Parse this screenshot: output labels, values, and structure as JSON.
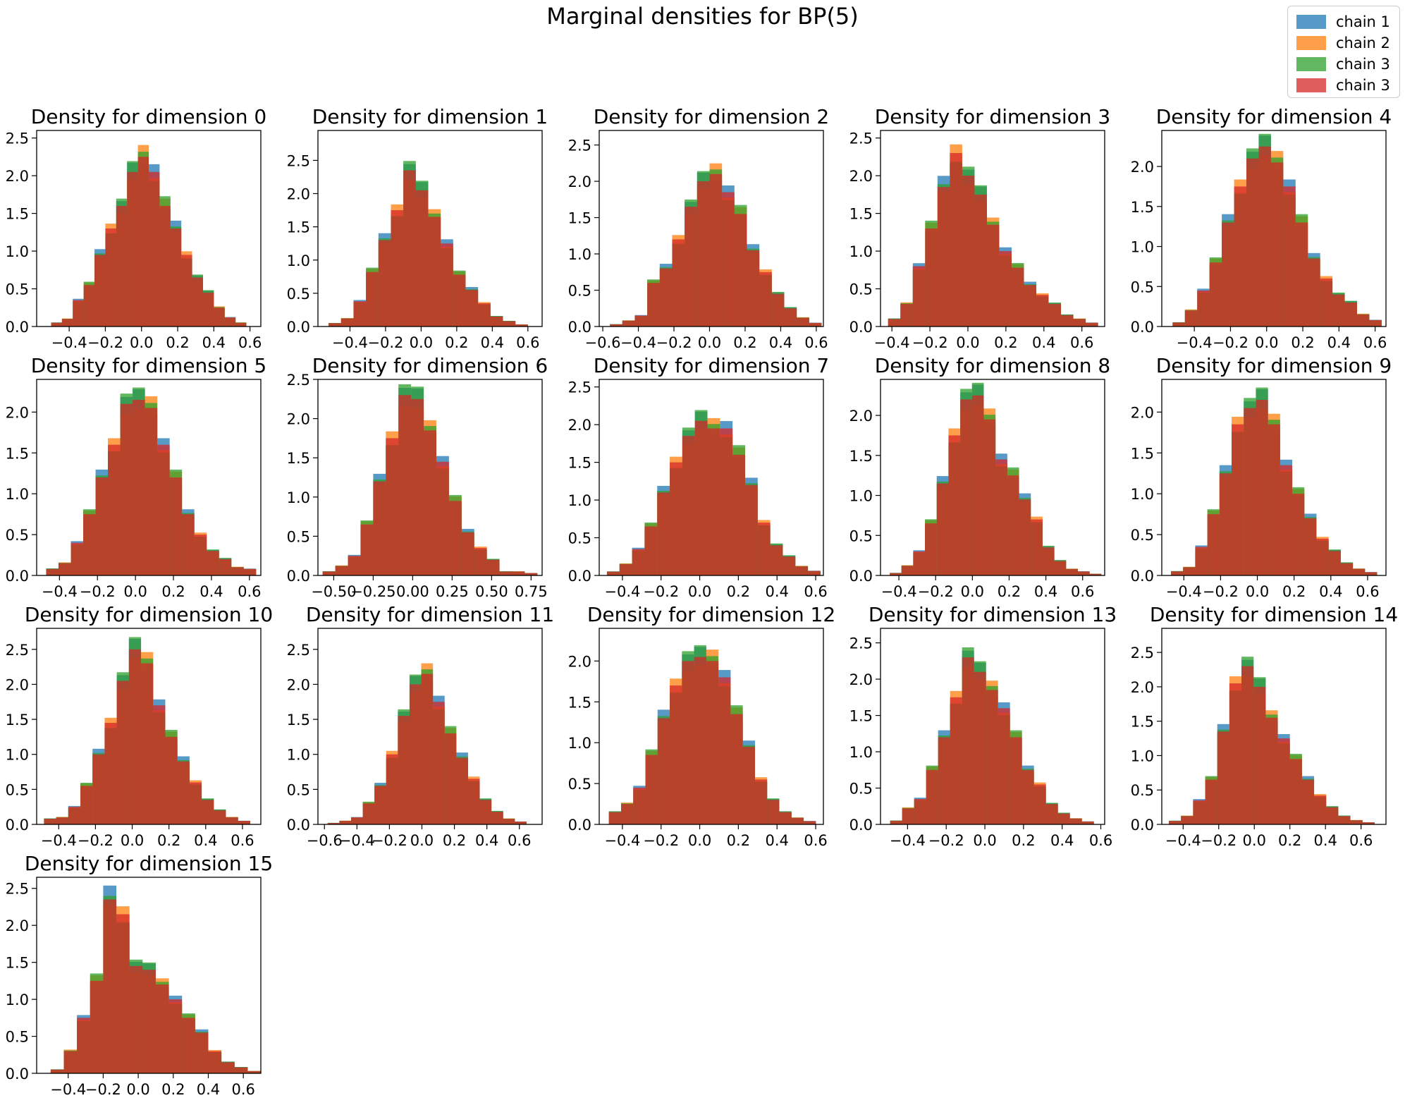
{
  "figure": {
    "title": "Marginal densities for BP(5)"
  },
  "legend": [
    {
      "label": "chain 1",
      "color": "#1f77b4"
    },
    {
      "label": "chain 2",
      "color": "#ff7f0e"
    },
    {
      "label": "chain 3",
      "color": "#2ca02c"
    },
    {
      "label": "chain 3",
      "color": "#d62728"
    }
  ],
  "chart_data": [
    {
      "type": "bar",
      "title": "Density for dimension 0",
      "xlim": [
        -0.58,
        0.66
      ],
      "ylim": [
        0,
        2.6
      ],
      "xticks": [
        {
          "v": -0.4,
          "label": "−0.4"
        },
        {
          "v": -0.2,
          "label": "−0.2"
        },
        {
          "v": 0.0,
          "label": "0.0"
        },
        {
          "v": 0.2,
          "label": "0.2"
        },
        {
          "v": 0.4,
          "label": "0.4"
        },
        {
          "v": 0.6,
          "label": "0.6"
        }
      ],
      "yticks": [
        0.0,
        0.5,
        1.0,
        1.5,
        2.0,
        2.5
      ],
      "density": [
        0.05,
        0.1,
        0.35,
        0.55,
        0.95,
        1.3,
        1.6,
        2.05,
        2.25,
        2.05,
        1.6,
        1.3,
        0.95,
        0.65,
        0.45,
        0.25,
        0.12,
        0.05
      ],
      "bin_start": -0.5,
      "bin_width": 0.06
    },
    {
      "type": "bar",
      "title": "Density for dimension 1",
      "xlim": [
        -0.58,
        0.68
      ],
      "ylim": [
        0,
        2.95
      ],
      "xticks": [
        {
          "v": -0.4,
          "label": "−0.4"
        },
        {
          "v": -0.2,
          "label": "−0.2"
        },
        {
          "v": 0.0,
          "label": "0.0"
        },
        {
          "v": 0.2,
          "label": "0.2"
        },
        {
          "v": 0.4,
          "label": "0.4"
        },
        {
          "v": 0.6,
          "label": "0.6"
        }
      ],
      "yticks": [
        0.0,
        0.5,
        1.0,
        1.5,
        2.0,
        2.5
      ],
      "density": [
        0.05,
        0.12,
        0.38,
        0.82,
        1.3,
        1.75,
        2.35,
        2.05,
        1.65,
        1.25,
        0.78,
        0.55,
        0.35,
        0.15,
        0.08,
        0.03
      ],
      "bin_start": -0.52,
      "bin_width": 0.07
    },
    {
      "type": "bar",
      "title": "Density for dimension 2",
      "xlim": [
        -0.62,
        0.64
      ],
      "ylim": [
        0,
        2.7
      ],
      "xticks": [
        {
          "v": -0.6,
          "label": "−0.6"
        },
        {
          "v": -0.4,
          "label": "−0.4"
        },
        {
          "v": -0.2,
          "label": "−0.2"
        },
        {
          "v": 0.0,
          "label": "0.0"
        },
        {
          "v": 0.2,
          "label": "0.2"
        },
        {
          "v": 0.4,
          "label": "0.4"
        },
        {
          "v": 0.6,
          "label": "0.6"
        }
      ],
      "yticks": [
        0.0,
        0.5,
        1.0,
        1.5,
        2.0,
        2.5
      ],
      "density": [
        0.03,
        0.08,
        0.15,
        0.6,
        0.8,
        1.2,
        1.65,
        2.0,
        2.1,
        1.85,
        1.55,
        1.05,
        0.75,
        0.45,
        0.25,
        0.12,
        0.05
      ],
      "bin_start": -0.56,
      "bin_width": 0.07
    },
    {
      "type": "bar",
      "title": "Density for dimension 3",
      "xlim": [
        -0.46,
        0.72
      ],
      "ylim": [
        0,
        2.6
      ],
      "xticks": [
        {
          "v": -0.4,
          "label": "−0.4"
        },
        {
          "v": -0.2,
          "label": "−0.2"
        },
        {
          "v": 0.0,
          "label": "0.0"
        },
        {
          "v": 0.2,
          "label": "0.2"
        },
        {
          "v": 0.4,
          "label": "0.4"
        },
        {
          "v": 0.6,
          "label": "0.6"
        }
      ],
      "yticks": [
        0.0,
        0.5,
        1.0,
        1.5,
        2.0,
        2.5
      ],
      "density": [
        0.1,
        0.3,
        0.8,
        1.3,
        1.85,
        2.3,
        2.0,
        1.75,
        1.35,
        1.0,
        0.78,
        0.55,
        0.42,
        0.3,
        0.15,
        0.1,
        0.05
      ],
      "bin_start": -0.42,
      "bin_width": 0.065
    },
    {
      "type": "bar",
      "title": "Density for dimension 4",
      "xlim": [
        -0.58,
        0.66
      ],
      "ylim": [
        0,
        2.45
      ],
      "xticks": [
        {
          "v": -0.4,
          "label": "−0.4"
        },
        {
          "v": -0.2,
          "label": "−0.2"
        },
        {
          "v": 0.0,
          "label": "0.0"
        },
        {
          "v": 0.2,
          "label": "0.2"
        },
        {
          "v": 0.4,
          "label": "0.4"
        },
        {
          "v": 0.6,
          "label": "0.6"
        }
      ],
      "yticks": [
        0.0,
        0.5,
        1.0,
        1.5,
        2.0
      ],
      "density": [
        0.05,
        0.2,
        0.45,
        0.8,
        1.3,
        1.75,
        2.1,
        2.25,
        2.05,
        1.75,
        1.3,
        0.85,
        0.6,
        0.4,
        0.3,
        0.15,
        0.08
      ],
      "bin_start": -0.52,
      "bin_width": 0.068
    },
    {
      "type": "bar",
      "title": "Density for dimension 5",
      "xlim": [
        -0.52,
        0.66
      ],
      "ylim": [
        0,
        2.4
      ],
      "xticks": [
        {
          "v": -0.4,
          "label": "−0.4"
        },
        {
          "v": -0.2,
          "label": "−0.2"
        },
        {
          "v": 0.0,
          "label": "0.0"
        },
        {
          "v": 0.2,
          "label": "0.2"
        },
        {
          "v": 0.4,
          "label": "0.4"
        },
        {
          "v": 0.6,
          "label": "0.6"
        }
      ],
      "yticks": [
        0.0,
        0.5,
        1.0,
        1.5,
        2.0
      ],
      "density": [
        0.08,
        0.15,
        0.4,
        0.75,
        1.2,
        1.6,
        2.1,
        2.15,
        2.05,
        1.6,
        1.2,
        0.75,
        0.5,
        0.3,
        0.2,
        0.1,
        0.08
      ],
      "bin_start": -0.47,
      "bin_width": 0.065
    },
    {
      "type": "bar",
      "title": "Density for dimension 6",
      "xlim": [
        -0.6,
        0.82
      ],
      "ylim": [
        0,
        2.5
      ],
      "xticks": [
        {
          "v": -0.5,
          "label": "−0.50"
        },
        {
          "v": -0.25,
          "label": "−0.25"
        },
        {
          "v": 0.0,
          "label": "0.00"
        },
        {
          "v": 0.25,
          "label": "0.25"
        },
        {
          "v": 0.5,
          "label": "0.50"
        },
        {
          "v": 0.75,
          "label": "0.75"
        }
      ],
      "yticks": [
        0.0,
        0.5,
        1.0,
        1.5,
        2.0,
        2.5
      ],
      "density": [
        0.05,
        0.12,
        0.25,
        0.65,
        1.2,
        1.75,
        2.3,
        2.25,
        1.85,
        1.45,
        0.95,
        0.55,
        0.35,
        0.2,
        0.05,
        0.05,
        0.03
      ],
      "bin_start": -0.57,
      "bin_width": 0.08
    },
    {
      "type": "bar",
      "title": "Density for dimension 7",
      "xlim": [
        -0.52,
        0.64
      ],
      "ylim": [
        0,
        2.6
      ],
      "xticks": [
        {
          "v": -0.4,
          "label": "−0.4"
        },
        {
          "v": -0.2,
          "label": "−0.2"
        },
        {
          "v": 0.0,
          "label": "0.0"
        },
        {
          "v": 0.2,
          "label": "0.2"
        },
        {
          "v": 0.4,
          "label": "0.4"
        },
        {
          "v": 0.6,
          "label": "0.6"
        }
      ],
      "yticks": [
        0.0,
        0.5,
        1.0,
        1.5,
        2.0,
        2.5
      ],
      "density": [
        0.05,
        0.15,
        0.35,
        0.65,
        1.1,
        1.5,
        1.85,
        2.05,
        1.95,
        1.95,
        1.6,
        1.2,
        0.7,
        0.4,
        0.25,
        0.12,
        0.06
      ],
      "bin_start": -0.48,
      "bin_width": 0.065
    },
    {
      "type": "bar",
      "title": "Density for dimension 8",
      "xlim": [
        -0.5,
        0.72
      ],
      "ylim": [
        0,
        2.45
      ],
      "xticks": [
        {
          "v": -0.4,
          "label": "−0.4"
        },
        {
          "v": -0.2,
          "label": "−0.2"
        },
        {
          "v": 0.0,
          "label": "0.0"
        },
        {
          "v": 0.2,
          "label": "0.2"
        },
        {
          "v": 0.4,
          "label": "0.4"
        },
        {
          "v": 0.6,
          "label": "0.6"
        }
      ],
      "yticks": [
        0.0,
        0.5,
        1.0,
        1.5,
        2.0
      ],
      "density": [
        0.03,
        0.12,
        0.3,
        0.65,
        1.15,
        1.75,
        2.2,
        2.25,
        1.95,
        1.45,
        1.25,
        0.95,
        0.7,
        0.35,
        0.18,
        0.08,
        0.05,
        0.02
      ],
      "bin_start": -0.45,
      "bin_width": 0.064
    },
    {
      "type": "bar",
      "title": "Density for dimension 9",
      "xlim": [
        -0.52,
        0.7
      ],
      "ylim": [
        0,
        2.4
      ],
      "xticks": [
        {
          "v": -0.4,
          "label": "−0.4"
        },
        {
          "v": -0.2,
          "label": "−0.2"
        },
        {
          "v": 0.0,
          "label": "0.0"
        },
        {
          "v": 0.2,
          "label": "0.2"
        },
        {
          "v": 0.4,
          "label": "0.4"
        },
        {
          "v": 0.6,
          "label": "0.6"
        }
      ],
      "yticks": [
        0.0,
        0.5,
        1.0,
        1.5,
        2.0
      ],
      "density": [
        0.05,
        0.1,
        0.35,
        0.75,
        1.25,
        1.85,
        2.05,
        2.15,
        1.85,
        1.35,
        1.0,
        0.7,
        0.45,
        0.3,
        0.15,
        0.08,
        0.04
      ],
      "bin_start": -0.47,
      "bin_width": 0.066
    },
    {
      "type": "bar",
      "title": "Density for dimension 10",
      "xlim": [
        -0.52,
        0.7
      ],
      "ylim": [
        0,
        2.8
      ],
      "xticks": [
        {
          "v": -0.4,
          "label": "−0.4"
        },
        {
          "v": -0.2,
          "label": "−0.2"
        },
        {
          "v": 0.0,
          "label": "0.0"
        },
        {
          "v": 0.2,
          "label": "0.2"
        },
        {
          "v": 0.4,
          "label": "0.4"
        },
        {
          "v": 0.6,
          "label": "0.6"
        }
      ],
      "yticks": [
        0.0,
        0.5,
        1.0,
        1.5,
        2.0,
        2.5
      ],
      "density": [
        0.08,
        0.1,
        0.25,
        0.55,
        1.0,
        1.45,
        2.05,
        2.5,
        2.3,
        1.7,
        1.25,
        0.9,
        0.6,
        0.35,
        0.2,
        0.1,
        0.05
      ],
      "bin_start": -0.48,
      "bin_width": 0.066
    },
    {
      "type": "bar",
      "title": "Density for dimension 11",
      "xlim": [
        -0.64,
        0.74
      ],
      "ylim": [
        0,
        2.8
      ],
      "xticks": [
        {
          "v": -0.6,
          "label": "−0.6"
        },
        {
          "v": -0.4,
          "label": "−0.4"
        },
        {
          "v": -0.2,
          "label": "−0.2"
        },
        {
          "v": 0.0,
          "label": "0.0"
        },
        {
          "v": 0.2,
          "label": "0.2"
        },
        {
          "v": 0.4,
          "label": "0.4"
        },
        {
          "v": 0.6,
          "label": "0.6"
        }
      ],
      "yticks": [
        0.0,
        0.5,
        1.0,
        1.5,
        2.0,
        2.5
      ],
      "density": [
        0.02,
        0.05,
        0.1,
        0.3,
        0.55,
        1.0,
        1.55,
        2.0,
        2.15,
        1.75,
        1.3,
        0.95,
        0.65,
        0.35,
        0.18,
        0.08,
        0.04
      ],
      "bin_start": -0.58,
      "bin_width": 0.072
    },
    {
      "type": "bar",
      "title": "Density for dimension 12",
      "xlim": [
        -0.52,
        0.64
      ],
      "ylim": [
        0,
        2.4
      ],
      "xticks": [
        {
          "v": -0.4,
          "label": "−0.4"
        },
        {
          "v": -0.2,
          "label": "−0.2"
        },
        {
          "v": 0.0,
          "label": "0.0"
        },
        {
          "v": 0.2,
          "label": "0.2"
        },
        {
          "v": 0.4,
          "label": "0.4"
        },
        {
          "v": 0.6,
          "label": "0.6"
        }
      ],
      "yticks": [
        0.0,
        0.5,
        1.0,
        1.5,
        2.0
      ],
      "density": [
        0.15,
        0.25,
        0.45,
        0.85,
        1.3,
        1.7,
        2.0,
        2.05,
        2.0,
        1.8,
        1.35,
        0.95,
        0.55,
        0.3,
        0.15,
        0.08,
        0.04
      ],
      "bin_start": -0.47,
      "bin_width": 0.063
    },
    {
      "type": "bar",
      "title": "Density for dimension 13",
      "xlim": [
        -0.54,
        0.62
      ],
      "ylim": [
        0,
        2.7
      ],
      "xticks": [
        {
          "v": -0.4,
          "label": "−0.4"
        },
        {
          "v": -0.2,
          "label": "−0.2"
        },
        {
          "v": 0.0,
          "label": "0.0"
        },
        {
          "v": 0.2,
          "label": "0.2"
        },
        {
          "v": 0.4,
          "label": "0.4"
        },
        {
          "v": 0.6,
          "label": "0.6"
        }
      ],
      "yticks": [
        0.0,
        0.5,
        1.0,
        1.5,
        2.0,
        2.5
      ],
      "density": [
        0.05,
        0.22,
        0.35,
        0.75,
        1.2,
        1.75,
        2.3,
        2.1,
        1.85,
        1.6,
        1.2,
        0.75,
        0.55,
        0.28,
        0.15,
        0.08,
        0.04
      ],
      "bin_start": -0.49,
      "bin_width": 0.062
    },
    {
      "type": "bar",
      "title": "Density for dimension 14",
      "xlim": [
        -0.52,
        0.74
      ],
      "ylim": [
        0,
        2.85
      ],
      "xticks": [
        {
          "v": -0.4,
          "label": "−0.4"
        },
        {
          "v": -0.2,
          "label": "−0.2"
        },
        {
          "v": 0.0,
          "label": "0.0"
        },
        {
          "v": 0.2,
          "label": "0.2"
        },
        {
          "v": 0.4,
          "label": "0.4"
        },
        {
          "v": 0.6,
          "label": "0.6"
        }
      ],
      "yticks": [
        0.0,
        0.5,
        1.0,
        1.5,
        2.0,
        2.5
      ],
      "density": [
        0.05,
        0.12,
        0.35,
        0.65,
        1.35,
        2.05,
        2.3,
        2.0,
        1.55,
        1.25,
        0.95,
        0.65,
        0.42,
        0.25,
        0.12,
        0.06,
        0.03
      ],
      "bin_start": -0.48,
      "bin_width": 0.068
    },
    {
      "type": "bar",
      "title": "Density for dimension 15",
      "xlim": [
        -0.58,
        0.7
      ],
      "ylim": [
        0,
        2.65
      ],
      "xticks": [
        {
          "v": -0.4,
          "label": "−0.4"
        },
        {
          "v": -0.2,
          "label": "−0.2"
        },
        {
          "v": 0.0,
          "label": "0.0"
        },
        {
          "v": 0.2,
          "label": "0.2"
        },
        {
          "v": 0.4,
          "label": "0.4"
        },
        {
          "v": 0.6,
          "label": "0.6"
        }
      ],
      "yticks": [
        0.0,
        0.5,
        1.0,
        1.5,
        2.0,
        2.5
      ],
      "density": [
        0.05,
        0.3,
        0.75,
        1.25,
        2.35,
        2.15,
        1.45,
        1.4,
        1.2,
        1.0,
        0.75,
        0.55,
        0.3,
        0.15,
        0.08,
        0.03
      ],
      "bin_start": -0.5,
      "bin_width": 0.075
    }
  ]
}
